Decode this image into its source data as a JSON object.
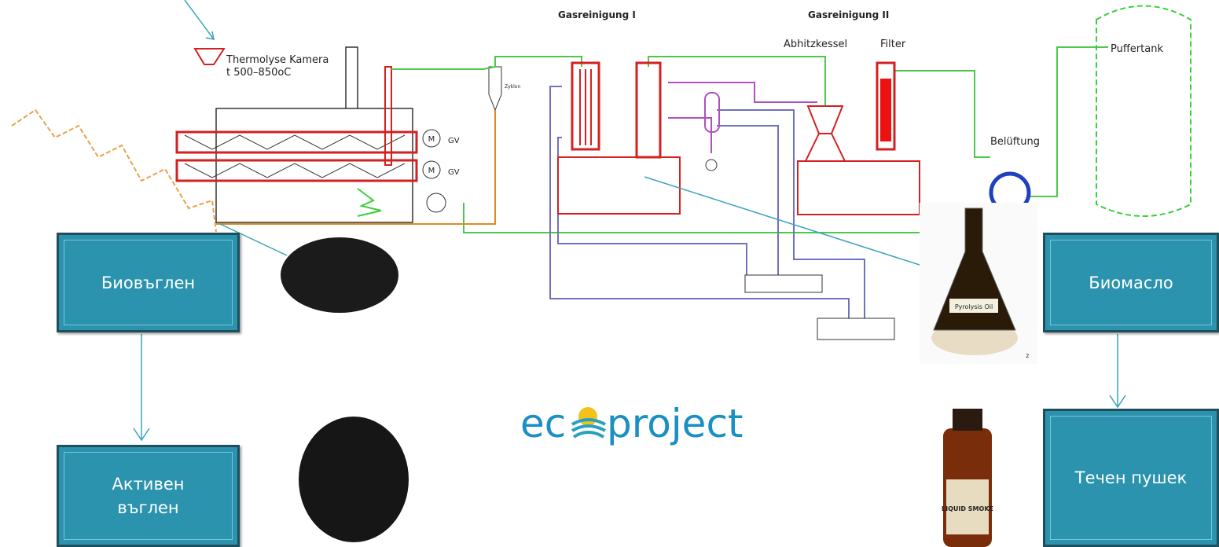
{
  "diagram": {
    "chamber_label": "Thermolyse Kamera",
    "temperature": "t 500–850oC",
    "stage_1": "Gasreinigung I",
    "stage_2": "Gasreinigung II",
    "boiler": "Abhitzkessel",
    "filter": "Filter",
    "tank": "Puffertank",
    "ventilation": "Belüftung",
    "cyclone": "Zyklon",
    "motor_symbol": "M",
    "motor_labels": [
      "GV",
      "GV"
    ]
  },
  "products": [
    {
      "label": "Биовъглен"
    },
    {
      "label": "Активен въглен"
    },
    {
      "label": "Биомасло"
    },
    {
      "label": "Течен пушек"
    }
  ],
  "images": {
    "oil_label": "Pyrolysis Oil",
    "smoke_label": "LIQUID SMOKE",
    "footnote": "2"
  },
  "logo": {
    "left": "ec",
    "right": "project"
  }
}
